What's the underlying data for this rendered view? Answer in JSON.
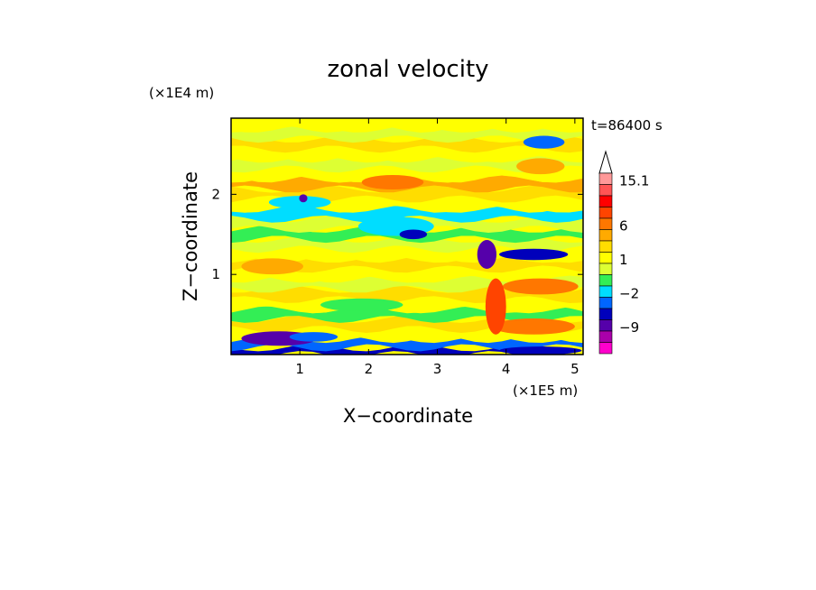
{
  "chart_data": {
    "type": "heatmap",
    "title": "zonal velocity",
    "xlabel": "X−coordinate",
    "ylabel": "Z−coordinate",
    "x_unit": "(×1E5 m)",
    "y_unit": "(×1E4 m)",
    "annotation": "t=86400 s",
    "xlim": [
      0,
      5.12
    ],
    "ylim": [
      0,
      2.95
    ],
    "x_ticks": [
      {
        "value": 1,
        "label": "1"
      },
      {
        "value": 2,
        "label": "2"
      },
      {
        "value": 3,
        "label": "3"
      },
      {
        "value": 4,
        "label": "4"
      },
      {
        "value": 5,
        "label": "5"
      }
    ],
    "y_ticks": [
      {
        "value": 1,
        "label": "1"
      },
      {
        "value": 2,
        "label": "2"
      }
    ],
    "colorbar": {
      "levels": [
        15.1,
        13,
        10,
        8,
        6,
        4,
        2,
        1,
        0,
        -1,
        -2,
        -4,
        -6,
        -9,
        -12
      ],
      "colors": [
        "#ff9999",
        "#ff5555",
        "#ff0000",
        "#ff4400",
        "#ff7700",
        "#ffaa00",
        "#ffdd00",
        "#ffff00",
        "#ddff33",
        "#33ee55",
        "#00ddff",
        "#0066ff",
        "#0000bb",
        "#5500aa",
        "#aa00aa",
        "#ff00cc"
      ],
      "labels": [
        {
          "value": 15.1,
          "label": "15.1"
        },
        {
          "value": 6,
          "label": "6"
        },
        {
          "value": 1,
          "label": "1"
        },
        {
          "value": -2,
          "label": "−2"
        },
        {
          "value": -9,
          "label": "−9"
        }
      ]
    },
    "bands": [
      {
        "z": 0.04,
        "u": -6
      },
      {
        "z": 0.13,
        "u": -4
      },
      {
        "z": 0.25,
        "u": 1
      },
      {
        "z": 0.38,
        "u": 3
      },
      {
        "z": 0.5,
        "u": -1
      },
      {
        "z": 0.62,
        "u": 1
      },
      {
        "z": 0.75,
        "u": 2
      },
      {
        "z": 0.88,
        "u": 0
      },
      {
        "z": 1.0,
        "u": 1
      },
      {
        "z": 1.13,
        "u": 3
      },
      {
        "z": 1.25,
        "u": 1
      },
      {
        "z": 1.38,
        "u": 0
      },
      {
        "z": 1.5,
        "u": -1
      },
      {
        "z": 1.63,
        "u": 0
      },
      {
        "z": 1.75,
        "u": -2
      },
      {
        "z": 1.88,
        "u": 1
      },
      {
        "z": 2.0,
        "u": 2
      },
      {
        "z": 2.13,
        "u": 4
      },
      {
        "z": 2.25,
        "u": 1
      },
      {
        "z": 2.38,
        "u": 0
      },
      {
        "z": 2.5,
        "u": 1
      },
      {
        "z": 2.63,
        "u": 2
      },
      {
        "z": 2.75,
        "u": 0
      },
      {
        "z": 2.88,
        "u": 1
      }
    ],
    "features": [
      {
        "x": 0.7,
        "z": 0.2,
        "rx": 0.55,
        "rz": 0.09,
        "u": -9
      },
      {
        "x": 1.2,
        "z": 0.22,
        "rx": 0.35,
        "rz": 0.06,
        "u": -4
      },
      {
        "x": 4.5,
        "z": 0.05,
        "rx": 0.6,
        "rz": 0.05,
        "u": -6
      },
      {
        "x": 4.4,
        "z": 0.35,
        "rx": 0.6,
        "rz": 0.1,
        "u": 6
      },
      {
        "x": 4.5,
        "z": 0.85,
        "rx": 0.55,
        "rz": 0.1,
        "u": 6
      },
      {
        "x": 4.4,
        "z": 1.25,
        "rx": 0.5,
        "rz": 0.07,
        "u": -6
      },
      {
        "x": 3.72,
        "z": 1.25,
        "rx": 0.14,
        "rz": 0.18,
        "u": -9
      },
      {
        "x": 3.85,
        "z": 0.6,
        "rx": 0.15,
        "rz": 0.35,
        "u": 8
      },
      {
        "x": 0.6,
        "z": 1.1,
        "rx": 0.45,
        "rz": 0.1,
        "u": 4
      },
      {
        "x": 2.35,
        "z": 2.15,
        "rx": 0.45,
        "rz": 0.09,
        "u": 6
      },
      {
        "x": 4.5,
        "z": 2.35,
        "rx": 0.35,
        "rz": 0.1,
        "u": 4
      },
      {
        "x": 4.55,
        "z": 2.65,
        "rx": 0.3,
        "rz": 0.08,
        "u": -4
      },
      {
        "x": 2.4,
        "z": 1.6,
        "rx": 0.55,
        "rz": 0.12,
        "u": -2
      },
      {
        "x": 2.65,
        "z": 1.5,
        "rx": 0.2,
        "rz": 0.06,
        "u": -6
      },
      {
        "x": 1.0,
        "z": 1.9,
        "rx": 0.45,
        "rz": 0.08,
        "u": -2
      },
      {
        "x": 1.05,
        "z": 1.95,
        "rx": 0.06,
        "rz": 0.05,
        "u": -9
      },
      {
        "x": 1.9,
        "z": 0.62,
        "rx": 0.6,
        "rz": 0.08,
        "u": -1
      }
    ]
  }
}
